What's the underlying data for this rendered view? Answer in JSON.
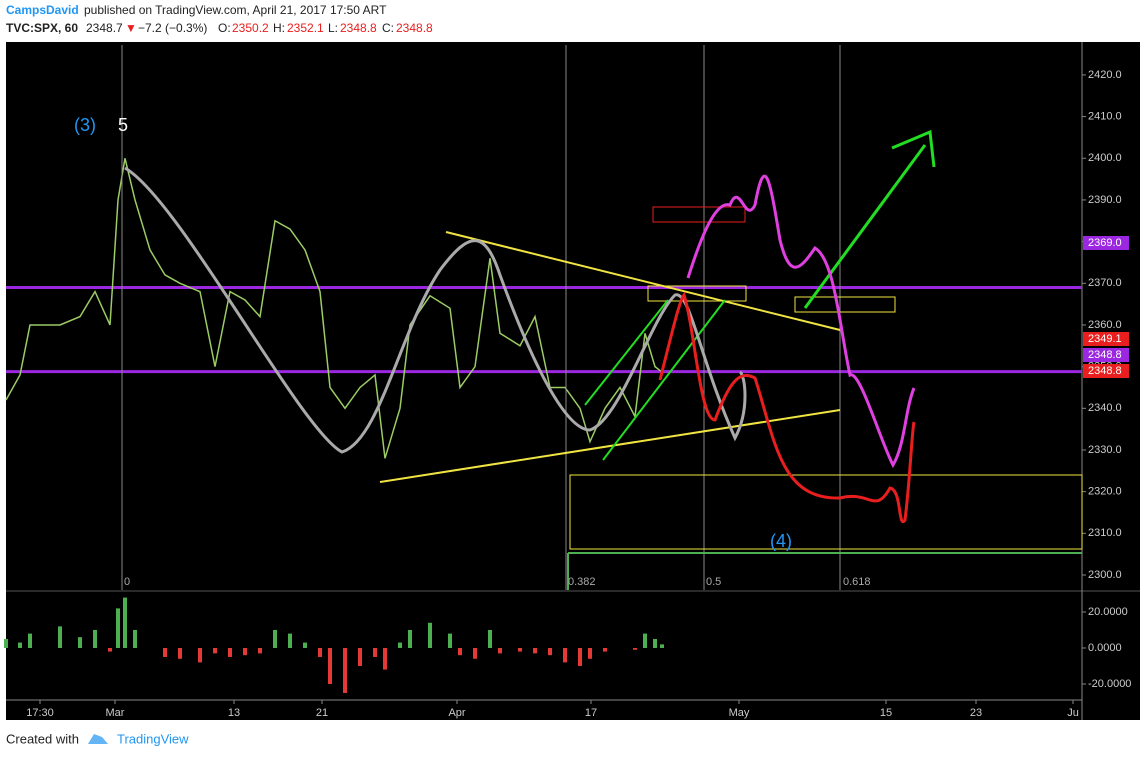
{
  "header": {
    "author": "CampsDavid",
    "published": "published on TradingView.com, April 21, 2017 17:50 ART",
    "symbol": "TVC:SPX, 60",
    "last": "2348.7",
    "arrow": "▼",
    "change": "−7.2 (−0.3%)",
    "o_label": "O:",
    "o": "2350.2",
    "h_label": "H:",
    "h": "2352.1",
    "l_label": "L:",
    "l": "2348.8",
    "c_label": "C:",
    "c": "2348.8"
  },
  "chart_data": {
    "type": "line",
    "x": [
      0,
      7,
      12,
      27,
      37,
      44.5,
      52,
      56,
      59.5,
      64.5,
      72,
      79.5,
      87,
      97,
      104.5,
      112,
      119.5,
      127,
      134.5,
      142,
      149.5,
      157,
      162,
      169.5,
      177,
      184.5,
      189.5,
      197,
      202,
      212,
      222,
      227,
      234.5,
      242,
      247,
      257,
      264.5,
      272,
      279.5,
      287,
      292,
      299.5,
      307,
      314.5,
      319.5,
      324.5,
      328
    ],
    "series": [
      {
        "color": "#9ccc65",
        "values": [
          2342,
          2348,
          2360,
          2360,
          2362,
          2368,
          2360,
          2390,
          2400,
          2390,
          2378,
          2372,
          2370,
          2368,
          2350,
          2368,
          2366,
          2362,
          2385,
          2383,
          2378,
          2368,
          2345,
          2340,
          2345,
          2348,
          2328,
          2340,
          2360,
          2367,
          2364,
          2345,
          2350,
          2376,
          2358,
          2355,
          2362,
          2345,
          2345,
          2340,
          2332,
          2340,
          2345,
          2338,
          2358,
          2350,
          2348.7
        ]
      }
    ],
    "xlim": [
      0,
      538
    ],
    "xticks": [
      {
        "value": 17,
        "label": "17:30"
      },
      {
        "value": 54.5,
        "label": "Mar"
      },
      {
        "value": 114,
        "label": "13"
      },
      {
        "value": 158,
        "label": "21"
      },
      {
        "value": 225.5,
        "label": "Apr"
      },
      {
        "value": 292.5,
        "label": "17"
      },
      {
        "value": 366.5,
        "label": "May"
      },
      {
        "value": 440,
        "label": "15"
      },
      {
        "value": 485,
        "label": "23"
      },
      {
        "value": 533.5,
        "label": "Ju"
      }
    ],
    "ylim": [
      2296.4,
      2427.9
    ],
    "yticks": [
      {
        "value": 2300,
        "label": "2300.0"
      },
      {
        "value": 2310,
        "label": "2310.0"
      },
      {
        "value": 2320,
        "label": "2320.0"
      },
      {
        "value": 2330,
        "label": "2330.0"
      },
      {
        "value": 2340,
        "label": "2340.0"
      },
      {
        "value": 2350,
        "label": "2350.0"
      },
      {
        "value": 2360,
        "label": "2360.0"
      },
      {
        "value": 2370,
        "label": "2370.0"
      },
      {
        "value": 2380,
        "label": "2380.0"
      },
      {
        "value": 2390,
        "label": "2390.0"
      },
      {
        "value": 2400,
        "label": "2400.0"
      },
      {
        "value": 2410,
        "label": "2410.0"
      },
      {
        "value": 2420,
        "label": "2420.0"
      }
    ],
    "price_labels": [
      {
        "value": 2369,
        "label": "2369.0",
        "color": "#9c27e0"
      },
      {
        "value": 2349.1,
        "label": "2349.1",
        "color": "#e91e1e"
      },
      {
        "value": 2348.8,
        "label": "2348.8",
        "color": "#9c27e0"
      },
      {
        "value": 2348.8,
        "label": "2348.8",
        "color": "#e91e1e"
      }
    ],
    "annotations": [
      "(3)",
      "5",
      "(4)",
      "0",
      "0.382",
      "0.5",
      "0.618"
    ],
    "oscillator": {
      "type": "bar",
      "values": [
        5,
        3,
        8,
        12,
        6,
        10,
        -2,
        22,
        28,
        10,
        0,
        -5,
        -6,
        -8,
        -3,
        -5,
        -4,
        -3,
        10,
        8,
        3,
        -5,
        -20,
        -25,
        -10,
        -5,
        -12,
        3,
        10,
        14,
        8,
        -4,
        -6,
        10,
        -3,
        -2,
        -3,
        -4,
        -8,
        -10,
        -6,
        -2,
        0,
        -1,
        8,
        5,
        2
      ],
      "ylim": [
        -28.9,
        31.1
      ],
      "yticks": [
        {
          "value": 20,
          "label": "20.0000"
        },
        {
          "value": 0,
          "label": "0.0000"
        },
        {
          "value": -20,
          "label": "-20.0000"
        }
      ]
    }
  },
  "footer": {
    "created": "Created with",
    "brand": "TradingView"
  }
}
